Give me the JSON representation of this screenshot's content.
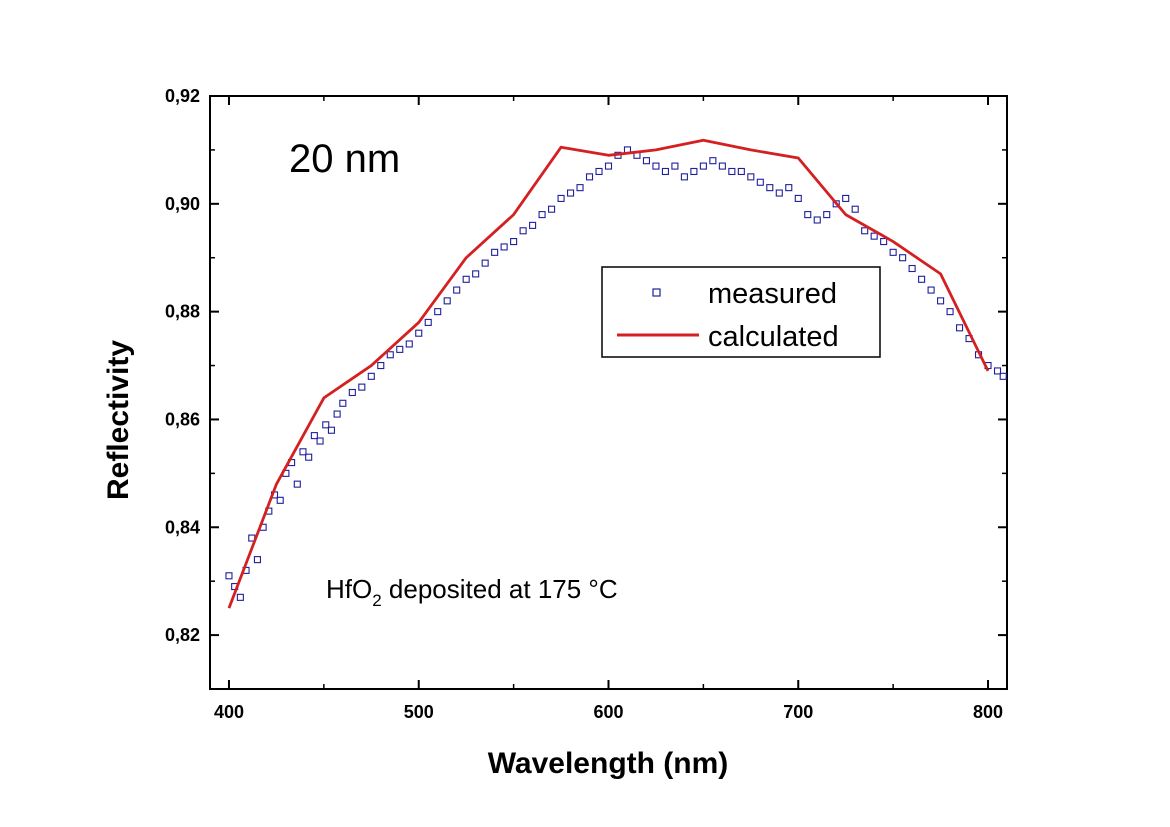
{
  "chart_data": {
    "type": "scatter",
    "title": "",
    "xlabel": "Wavelength (nm)",
    "ylabel": "Reflectivity",
    "xlim": [
      390,
      810
    ],
    "ylim": [
      0.81,
      0.92
    ],
    "x_ticks": [
      400,
      500,
      600,
      700,
      800
    ],
    "x_tick_labels": [
      "400",
      "500",
      "600",
      "700",
      "800"
    ],
    "y_ticks": [
      0.82,
      0.84,
      0.86,
      0.88,
      0.9,
      0.92
    ],
    "y_tick_labels": [
      "0,82",
      "0,84",
      "0,86",
      "0,88",
      "0,90",
      "0,92"
    ],
    "grid": false,
    "legend_position": "right-center",
    "annotations": {
      "thickness": "20 nm",
      "material_prefix": "HfO",
      "material_subscript": "2",
      "material_suffix": " deposited at 175 °C"
    },
    "series": [
      {
        "name": "measured",
        "type": "scatter",
        "marker": "open-square",
        "color": "#1f1f9c",
        "x": [
          400,
          403,
          406,
          409,
          412,
          415,
          418,
          421,
          424,
          427,
          430,
          433,
          436,
          439,
          442,
          445,
          448,
          451,
          454,
          457,
          460,
          465,
          470,
          475,
          480,
          485,
          490,
          495,
          500,
          505,
          510,
          515,
          520,
          525,
          530,
          535,
          540,
          545,
          550,
          555,
          560,
          565,
          570,
          575,
          580,
          585,
          590,
          595,
          600,
          605,
          610,
          615,
          620,
          625,
          630,
          635,
          640,
          645,
          650,
          655,
          660,
          665,
          670,
          675,
          680,
          685,
          690,
          695,
          700,
          705,
          710,
          715,
          720,
          725,
          730,
          735,
          740,
          745,
          750,
          755,
          760,
          765,
          770,
          775,
          780,
          785,
          790,
          795,
          800,
          805,
          808
        ],
        "y": [
          0.831,
          0.829,
          0.827,
          0.832,
          0.838,
          0.834,
          0.84,
          0.843,
          0.846,
          0.845,
          0.85,
          0.852,
          0.848,
          0.854,
          0.853,
          0.857,
          0.856,
          0.859,
          0.858,
          0.861,
          0.863,
          0.865,
          0.866,
          0.868,
          0.87,
          0.872,
          0.873,
          0.874,
          0.876,
          0.878,
          0.88,
          0.882,
          0.884,
          0.886,
          0.887,
          0.889,
          0.891,
          0.892,
          0.893,
          0.895,
          0.896,
          0.898,
          0.899,
          0.901,
          0.902,
          0.903,
          0.905,
          0.906,
          0.907,
          0.909,
          0.91,
          0.909,
          0.908,
          0.907,
          0.906,
          0.907,
          0.905,
          0.906,
          0.907,
          0.908,
          0.907,
          0.906,
          0.906,
          0.905,
          0.904,
          0.903,
          0.902,
          0.903,
          0.901,
          0.898,
          0.897,
          0.898,
          0.9,
          0.901,
          0.899,
          0.895,
          0.894,
          0.893,
          0.891,
          0.89,
          0.888,
          0.886,
          0.884,
          0.882,
          0.88,
          0.877,
          0.875,
          0.872,
          0.87,
          0.869,
          0.868
        ]
      },
      {
        "name": "calculated",
        "type": "line",
        "color": "#d42020",
        "x": [
          400,
          425,
          450,
          475,
          500,
          525,
          550,
          575,
          600,
          625,
          650,
          675,
          700,
          725,
          750,
          775,
          800
        ],
        "y": [
          0.825,
          0.848,
          0.864,
          0.87,
          0.878,
          0.89,
          0.898,
          0.9105,
          0.909,
          0.91,
          0.9118,
          0.91,
          0.9085,
          0.898,
          0.893,
          0.887,
          0.869
        ]
      }
    ]
  }
}
